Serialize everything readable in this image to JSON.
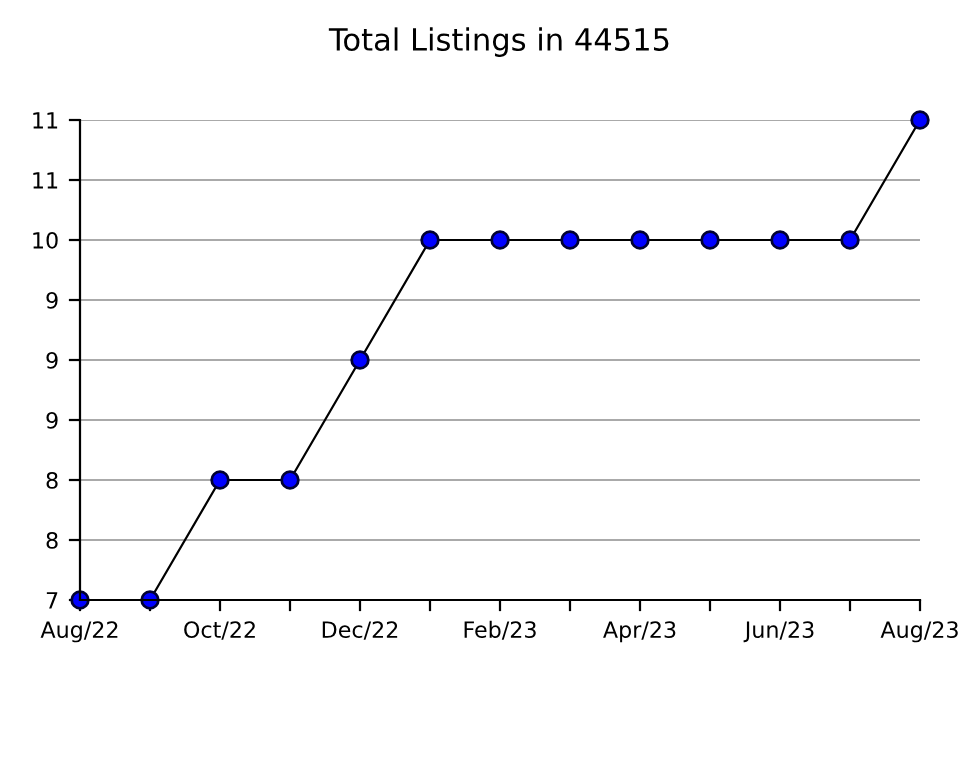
{
  "chart_data": {
    "type": "line",
    "title": "Total Listings in 44515",
    "categories": [
      "Aug/22",
      null,
      "Oct/22",
      null,
      "Dec/22",
      null,
      "Feb/23",
      null,
      "Apr/23",
      null,
      "Jun/23",
      null,
      "Aug/23"
    ],
    "series": [
      {
        "color": "#0000ff",
        "values": [
          7,
          7,
          8,
          8,
          9,
          10,
          10,
          10,
          10,
          10,
          10,
          10,
          11
        ]
      }
    ],
    "ylim": [
      7,
      11
    ],
    "yticks": [
      7,
      {
        "value": 7.5,
        "label": "8"
      },
      8,
      {
        "value": 8.5,
        "label": "9"
      },
      9,
      {
        "value": 9.5,
        "label": "9"
      },
      10,
      {
        "value": 10.5,
        "label": "11"
      },
      11
    ],
    "grid": "y",
    "marker": "circle",
    "line_style": "solid"
  }
}
